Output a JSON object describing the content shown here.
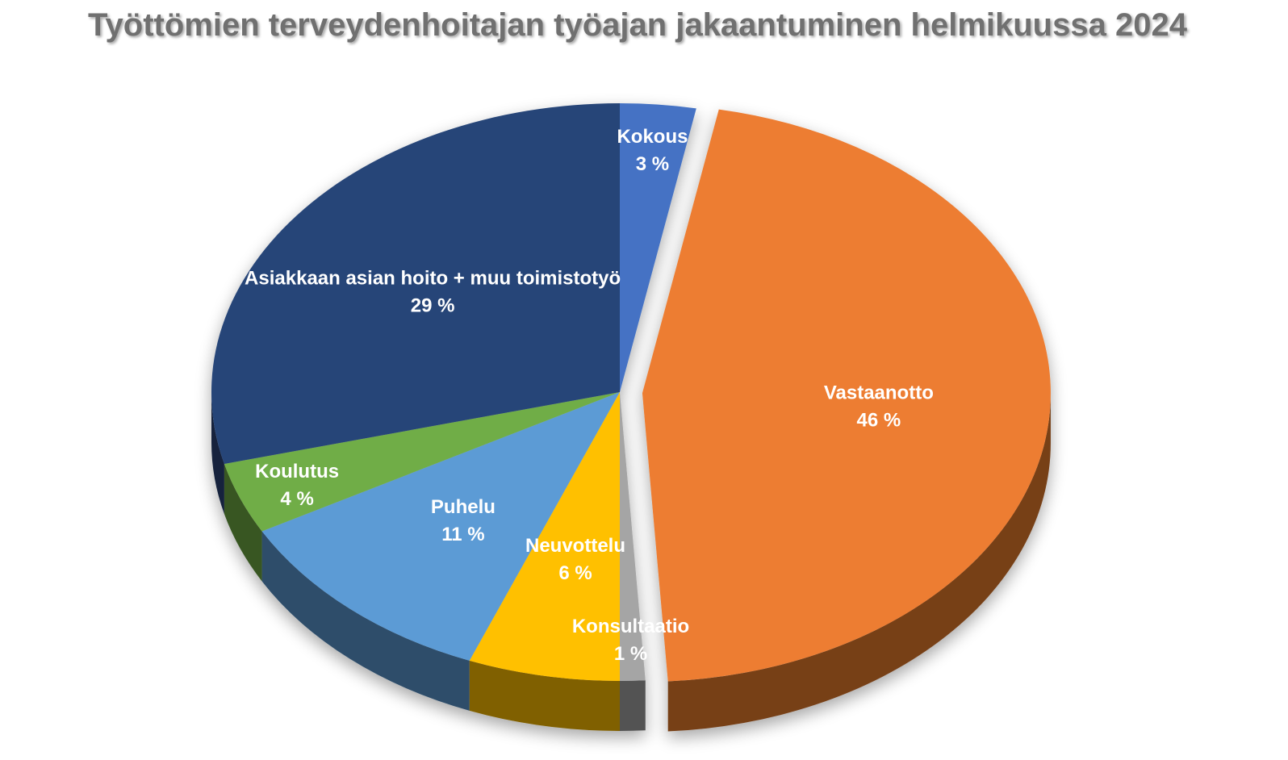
{
  "chart_data": {
    "type": "pie",
    "title": "Työttömien terveydenhoitajan työajan jakaantuminen helmikuussa 2024",
    "categories": [
      "Kokous",
      "Vastaanotto",
      "Konsultaatio",
      "Neuvottelu",
      "Puhelu",
      "Koulutus",
      "Asiakkaan asian hoito + muu toimistotyö"
    ],
    "values": [
      3,
      46,
      1,
      6,
      11,
      4,
      29
    ],
    "value_labels": [
      "3 %",
      "46 %",
      "1 %",
      "6 %",
      "11 %",
      "4 %",
      "29 %"
    ],
    "colors": [
      "#4472c4",
      "#ed7d31",
      "#a5a5a5",
      "#ffc000",
      "#5b9bd5",
      "#70ad47",
      "#264478"
    ],
    "exploded": [
      false,
      true,
      false,
      false,
      false,
      false,
      false
    ]
  }
}
